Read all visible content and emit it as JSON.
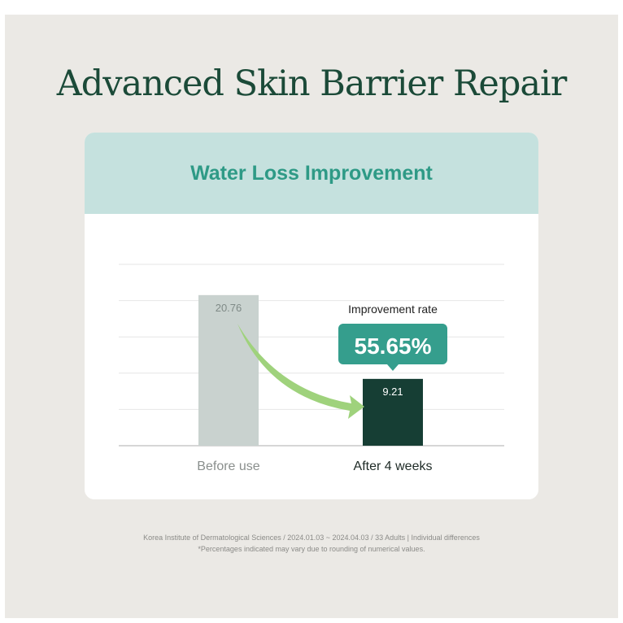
{
  "title": "Advanced Skin Barrier Repair",
  "card_title": "Water Loss Improvement",
  "chart_data": {
    "type": "bar",
    "categories": [
      "Before use",
      "After 4 weeks"
    ],
    "values": [
      20.76,
      9.21
    ],
    "value_labels": [
      "20.76",
      "9.21"
    ],
    "ylim": [
      0,
      25
    ],
    "grid": true,
    "colors": [
      "#c9d2cf",
      "#163e34"
    ],
    "annotation_label": "Improvement rate",
    "annotation_value": "55.65%",
    "annotation_color": "#359e8d",
    "arrow_color": "#9fd27c"
  },
  "footnotes": [
    "Korea Institute of Dermatological Sciences / 2024.01.03 ~ 2024.04.03 / 33 Adults | Individual differences",
    "*Percentages indicated may vary due to rounding of numerical values."
  ]
}
